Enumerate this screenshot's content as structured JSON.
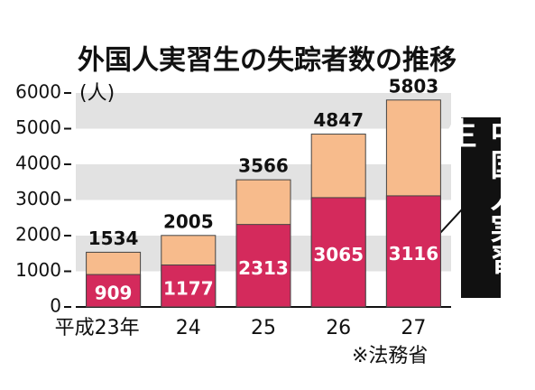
{
  "chart_data": {
    "type": "bar",
    "title": "外国人実習生の失踪者数の推移",
    "y_label": "(人)",
    "source": "※法務省",
    "categories": [
      "平成23年",
      "24",
      "25",
      "26",
      "27"
    ],
    "series": [
      {
        "name": "中国人実習生",
        "color": "#d42a5c",
        "values": [
          909,
          1177,
          2313,
          3065,
          3116
        ]
      }
    ],
    "totals": {
      "color": "#f7bb8c",
      "values": [
        1534,
        2005,
        3566,
        4847,
        5803
      ]
    },
    "ylim": [
      0,
      6000
    ],
    "yticks": [
      0,
      1000,
      2000,
      3000,
      4000,
      5000,
      6000
    ],
    "grid": true
  }
}
